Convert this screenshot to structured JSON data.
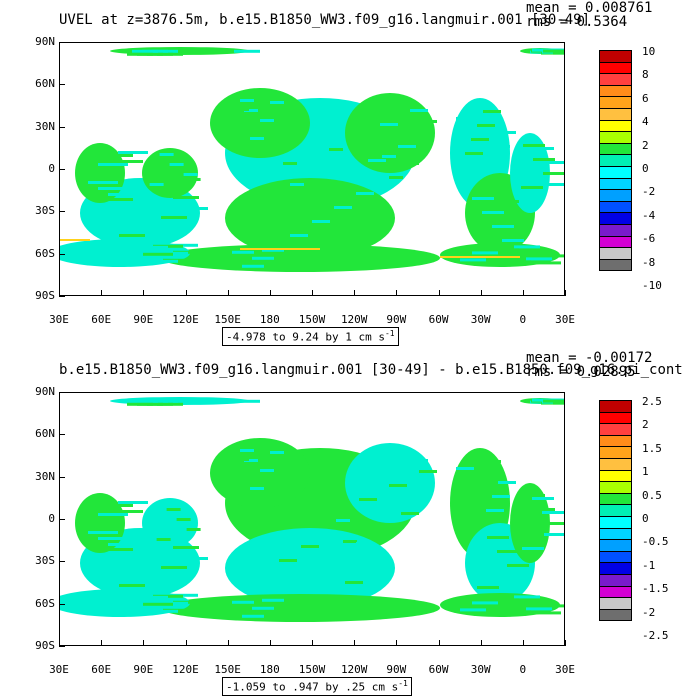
{
  "panels": [
    {
      "title": "UVEL at z=3876.5m, b.e15.B1850_WW3.f09_g16.langmuir.001 [30-49]",
      "mean": "mean = 0.008761",
      "rms": "rms = 0.5364",
      "range_text": "-4.978 to 9.24 by 1 cm s",
      "range_exp": "-1",
      "colorbar_labels": [
        "10",
        "8",
        "6",
        "4",
        "2",
        "0",
        "-2",
        "-4",
        "-6",
        "-8",
        "-10"
      ],
      "colorbar_colors": [
        "#c00000",
        "#ff0000",
        "#ff4040",
        "#ff8c1a",
        "#ffa31a",
        "#ffc040",
        "#ffff00",
        "#aaff00",
        "#22e63a",
        "#00f0b4",
        "#00ffff",
        "#00d4ff",
        "#00a0ff",
        "#0050ff",
        "#0000e6",
        "#7a1acc",
        "#d400d4",
        "#c8c8c8",
        "#6e6e6e"
      ],
      "ocean_pattern": "mostly-green"
    },
    {
      "title": "b.e15.B1850_WW3.f09_g16.langmuir.001 [30-49] - b.e15.B1850.f09_g16.pi_cont",
      "mean": "mean = -0.00172",
      "rms": "rms = 0.02895",
      "range_text": "-1.059 to .947 by .25 cm s",
      "range_exp": "-1",
      "colorbar_labels": [
        "2.5",
        "2",
        "1.5",
        "1",
        "0.5",
        "0",
        "-0.5",
        "-1",
        "-1.5",
        "-2",
        "-2.5"
      ],
      "colorbar_colors": [
        "#c00000",
        "#ff0000",
        "#ff4040",
        "#ff8c1a",
        "#ffa31a",
        "#ffc040",
        "#ffff00",
        "#aaff00",
        "#22e63a",
        "#00f0b4",
        "#00ffff",
        "#00d4ff",
        "#00a0ff",
        "#0050ff",
        "#0000e6",
        "#7a1acc",
        "#d400d4",
        "#c8c8c8",
        "#6e6e6e"
      ],
      "ocean_pattern": "mixed-green-cyan"
    }
  ],
  "lat_labels": [
    "90N",
    "60N",
    "30N",
    "0",
    "30S",
    "60S",
    "90S"
  ],
  "lon_labels": [
    "30E",
    "60E",
    "90E",
    "120E",
    "150E",
    "180",
    "150W",
    "120W",
    "90W",
    "60W",
    "30W",
    "0",
    "30E"
  ],
  "colors": {
    "green": "#22e63a",
    "cyan": "#00f0d0",
    "yellow": "#ffd21a",
    "background": "#ffffff"
  }
}
